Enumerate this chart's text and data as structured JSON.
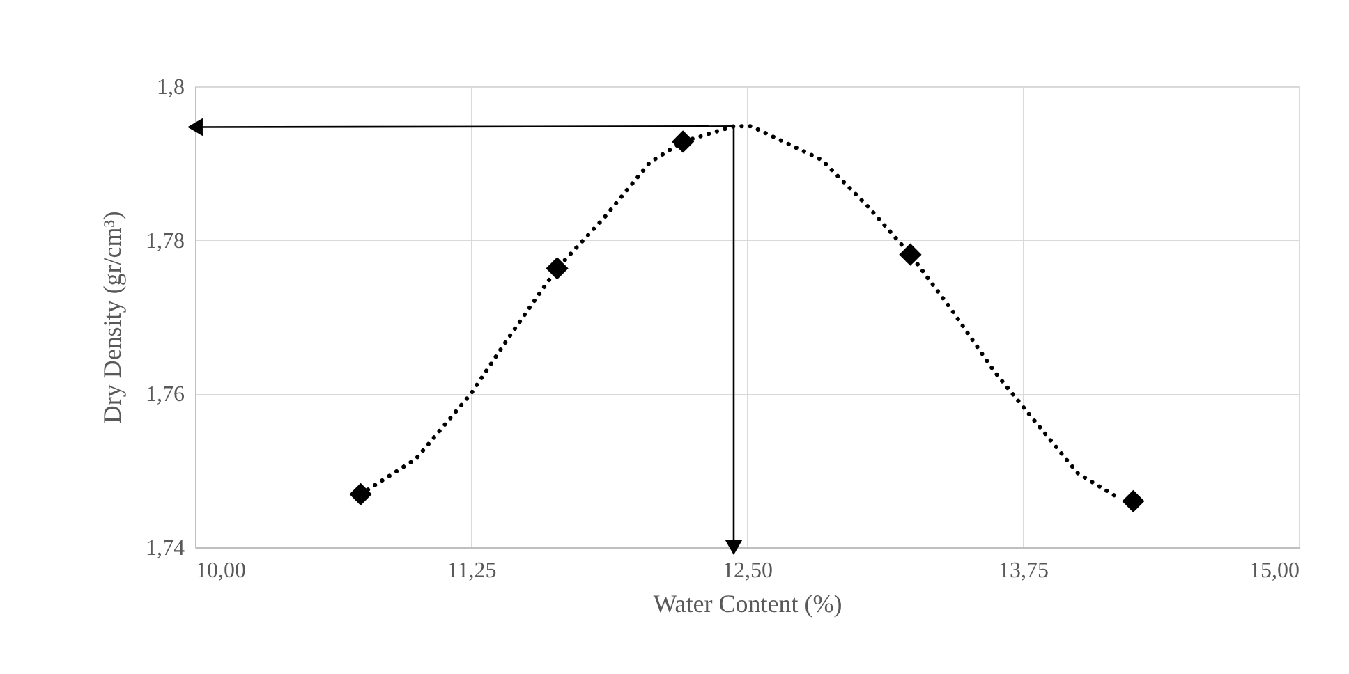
{
  "chart_data": {
    "type": "scatter",
    "xlabel": "Water Content (%)",
    "ylabel": "Dry Density (gr/cm³)",
    "xlim": [
      10,
      15
    ],
    "ylim": [
      1.74,
      1.8
    ],
    "xticks": [
      {
        "value": 10,
        "label": "10,00"
      },
      {
        "value": 11.25,
        "label": "11,25"
      },
      {
        "value": 12.5,
        "label": "12,50"
      },
      {
        "value": 13.75,
        "label": "13,75"
      },
      {
        "value": 15,
        "label": "15,00"
      }
    ],
    "yticks": [
      {
        "value": 1.74,
        "label": "1,74"
      },
      {
        "value": 1.76,
        "label": "1,76"
      },
      {
        "value": 1.78,
        "label": "1,78"
      },
      {
        "value": 1.8,
        "label": "1,8"
      }
    ],
    "grid": true,
    "series": [
      {
        "type": "line",
        "color": "#000000",
        "line_style": "dotted",
        "marker": "none",
        "x": [
          10.75,
          11.0,
          11.25,
          11.43,
          11.64,
          11.85,
          12.06,
          12.21,
          12.44,
          12.52,
          12.84,
          13.05,
          13.24,
          13.43,
          13.62,
          13.79,
          14.0,
          14.19
        ],
        "values": [
          1.7469,
          1.7515,
          1.76,
          1.7677,
          1.7763,
          1.7828,
          1.7901,
          1.7928,
          1.7948,
          1.7948,
          1.7904,
          1.7843,
          1.7781,
          1.7708,
          1.7629,
          1.7569,
          1.7496,
          1.7463
        ]
      },
      {
        "type": "line",
        "color": "#000000",
        "line_style": "solid",
        "x": [
          10.0,
          12.44,
          12.44
        ],
        "values": [
          1.7947,
          1.7948,
          1.74
        ]
      },
      {
        "color": "#000000",
        "marker": "diamond",
        "x": [
          10.75,
          11.64,
          12.21,
          13.24,
          14.25
        ],
        "values": [
          1.7469,
          1.7763,
          1.7928,
          1.7781,
          1.746
        ]
      }
    ]
  }
}
